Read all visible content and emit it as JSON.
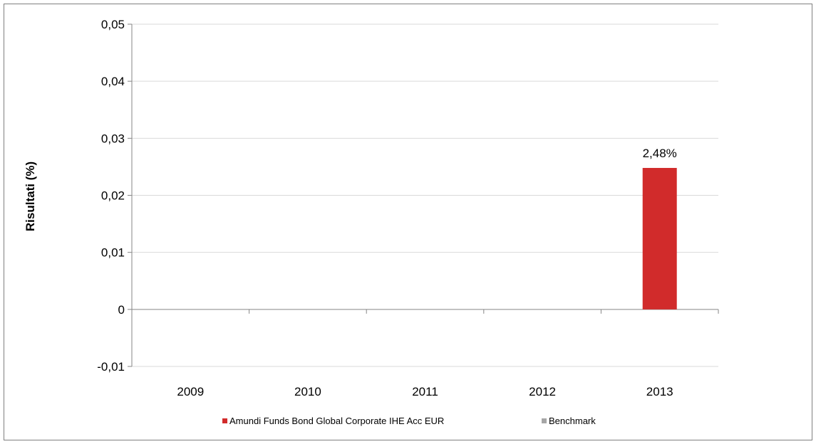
{
  "chart_data": {
    "type": "bar",
    "ylabel": "Risultati (%)",
    "categories": [
      "2009",
      "2010",
      "2011",
      "2012",
      "2013"
    ],
    "ylim": [
      -0.01,
      0.05
    ],
    "yticks": [
      -0.01,
      0,
      0.01,
      0.02,
      0.03,
      0.04,
      0.05
    ],
    "ytick_labels": [
      "-0,01",
      "0",
      "0,01",
      "0,02",
      "0,03",
      "0,04",
      "0,05"
    ],
    "grid": true,
    "legend_position": "bottom",
    "series": [
      {
        "name": "Amundi Funds Bond Global Corporate IHE Acc EUR",
        "color": "#d12b2b",
        "values": [
          null,
          null,
          null,
          null,
          0.0248
        ],
        "data_labels": [
          null,
          null,
          null,
          null,
          "2,48%"
        ]
      },
      {
        "name": "Benchmark",
        "color": "#a6a6a6",
        "values": [
          null,
          null,
          null,
          null,
          null
        ],
        "data_labels": [
          null,
          null,
          null,
          null,
          null
        ]
      }
    ]
  }
}
